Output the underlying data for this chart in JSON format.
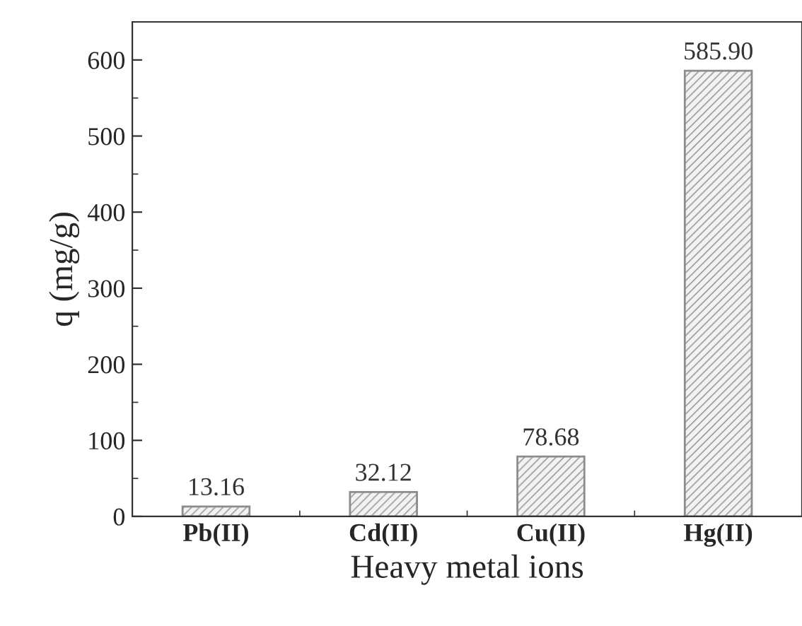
{
  "chart_data": {
    "type": "bar",
    "xlabel": "Heavy metal ions",
    "ylabel": "q (mg/g)",
    "categories": [
      "Pb(II)",
      "Cd(II)",
      "Cu(II)",
      "Hg(II)"
    ],
    "values": [
      13.16,
      32.12,
      78.68,
      585.9
    ],
    "value_labels": [
      "13.16",
      "32.12",
      "78.68",
      "585.90"
    ],
    "color": "#8c8c8c",
    "ylim": [
      0,
      650
    ],
    "yticks": [
      0,
      100,
      200,
      300,
      400,
      500,
      600
    ],
    "grid": false,
    "legend": false
  }
}
